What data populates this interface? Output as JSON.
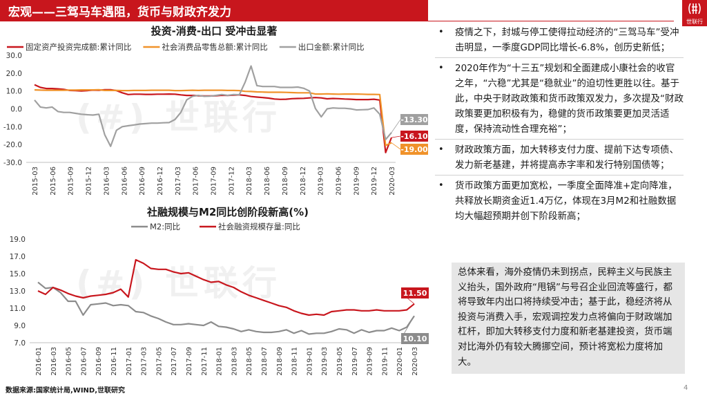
{
  "header": {
    "title": "宏观——三驾马车遇阻，货币与财政齐发力",
    "logo_text": "世联行"
  },
  "watermark": {
    "text": "(#) 世联行"
  },
  "bullets": [
    "疫情之下，封城与停工使得拉动经济的“三驾马车”受冲击明显，一季度GDP同比增长-6.8%，创历史新低；",
    "2020年作为“十三五”规划和全面建成小康社会的收官之年，“六稳”尤其是“稳就业”的迫切性更胜以往。基于此，中央于财政政策和货币政策双发力，多次提及“财政政策要更加积极有为，稳健的货币政策要更加灵活适度，保持流动性合理充裕”；",
    "财政政策方面，加大转移支付力度、提前下达专项债、发力新老基建，并将提高赤字率和发行特别国债等；",
    "货币政策方面更加宽松，一季度全面降准+定向降准，共释放长期资金近1.4万亿，体现在3月M2和社融数据均大幅超预期并创下阶段新高；"
  ],
  "summary": "总体来看，海外疫情仍未到拐点，民粹主义与民族主义抬头，国外政府“甩锅”与号召企业回流等盛行，都将导致年内出口将持续受冲击；基于此，稳经济将从投资与消费入手，宏观调控发力点将偏向于财政端加杠杆，即加大转移支付力度和新老基建投资，货币端对比海外仍有较大腾挪空间，预计将宽松力度将加大。",
  "footer": {
    "source": "数据来源:国家统计局,WIND,世联研究",
    "page": "4"
  },
  "chart_data": [
    {
      "type": "line",
      "title": "投资-消费-出口 受冲击显著",
      "ylim": [
        -30,
        30
      ],
      "yticks": [
        "30.0",
        "20.0",
        "10.0",
        "0.0",
        "-10.0",
        "-20.0",
        "-30.0"
      ],
      "x_tick_labels": [
        "2015-03",
        "2015-06",
        "2015-09",
        "2015-12",
        "2016-03",
        "2016-06",
        "2016-09",
        "2016-12",
        "2017-03",
        "2017-06",
        "2017-09",
        "2017-12",
        "2018-03",
        "2018-06",
        "2018-09",
        "2018-12",
        "2019-03",
        "2019-06",
        "2019-09",
        "2019-12",
        "2020-03"
      ],
      "series": [
        {
          "name": "固定资产投资完成额:累计同比",
          "color": "#c8161d",
          "end_label": "-16.10",
          "values": [
            13.5,
            12,
            11.4,
            11.4,
            11.2,
            10.9,
            10.3,
            10.2,
            10,
            10.2,
            10.5,
            10.4,
            10.7,
            10.7,
            10.2,
            9,
            8,
            8.2,
            8.2,
            8.1,
            8.1,
            8.2,
            8.2,
            8.3,
            8.2,
            7.8,
            7.5,
            7.5,
            7.3,
            7.2,
            7.2,
            7.3,
            7.6,
            7.5,
            7.7,
            7.8,
            7.5,
            6.9,
            6.6,
            6.3,
            6.0,
            5.5,
            5.3,
            5.4,
            5.7,
            5.8,
            5.9,
            6.1,
            6.3,
            6.1,
            5.6,
            5.8,
            5.7,
            5.5,
            5.4,
            5.2,
            5.2,
            5.2,
            5.4,
            4.9,
            -24.5,
            -16.1
          ]
        },
        {
          "name": "社会消费品零售总额:累计同比",
          "color": "#f0922a",
          "end_label": "-19.00",
          "values": [
            10.6,
            10.5,
            10.4,
            10.4,
            10.4,
            10.4,
            10.5,
            10.5,
            10.6,
            10.6,
            10.6,
            10.7,
            10.3,
            10.3,
            10.3,
            10.2,
            10.2,
            10.3,
            10.3,
            10.3,
            10.4,
            10.4,
            10.4,
            10.4,
            10.2,
            10.2,
            10.3,
            10.4,
            10.3,
            10.4,
            10.4,
            10.4,
            10.4,
            10.3,
            10.3,
            10.2,
            9.8,
            9.7,
            9.5,
            9.4,
            9.3,
            9.3,
            9.3,
            9.2,
            9.1,
            9.0,
            9.0,
            9.0,
            8.3,
            8.3,
            8.4,
            8.3,
            8.2,
            8.3,
            8.3,
            8.3,
            8.2,
            8.1,
            8.1,
            8.0,
            -20.5,
            -19.0
          ]
        },
        {
          "name": "出口金额:累计同比",
          "color": "#a0a0a0",
          "end_label": "-13.30",
          "values": [
            4.9,
            1,
            0.5,
            1,
            -1.5,
            -2,
            -2,
            -2.5,
            -3,
            -3.3,
            -3.5,
            -3,
            -14.5,
            -21,
            -12,
            -10,
            -9.5,
            -9,
            -8.5,
            -8.3,
            -8,
            -8,
            -7.8,
            -7.7,
            -6,
            -2,
            5,
            7,
            7.5,
            7,
            7.1,
            7.5,
            8,
            7.5,
            8,
            7.9,
            15,
            24,
            13,
            12.5,
            12.5,
            12.5,
            12,
            12,
            12,
            12.2,
            11.5,
            10,
            0.2,
            -4.5,
            0,
            0.5,
            0.3,
            0.3,
            0,
            -0.6,
            -0.5,
            -0.4,
            0.5,
            -3,
            -17.2,
            -13.3
          ]
        }
      ]
    },
    {
      "type": "line",
      "title": "社融规模与M2同比创阶段新高(%)",
      "ylim": [
        7,
        19
      ],
      "yticks": [
        "19.0",
        "17.0",
        "15.0",
        "13.0",
        "11.0",
        "9.0",
        "7.0"
      ],
      "x_tick_labels": [
        "2016-01",
        "2016-03",
        "2016-05",
        "2016-07",
        "2016-09",
        "2016-11",
        "2017-01",
        "2017-03",
        "2017-05",
        "2017-07",
        "2017-09",
        "2017-11",
        "2018-01",
        "2018-03",
        "2018-05",
        "2018-07",
        "2018-09",
        "2018-11",
        "2019-01",
        "2019-03",
        "2019-05",
        "2019-07",
        "2019-09",
        "2019-11",
        "2020-01",
        "2020-03"
      ],
      "series": [
        {
          "name": "M2:同比",
          "color": "#8c8c8c",
          "end_label": "10.10",
          "values": [
            14,
            13.3,
            13.4,
            12.8,
            11.8,
            11.8,
            10.2,
            11.4,
            11.5,
            11.6,
            11.3,
            11.4,
            11.3,
            10.6,
            10.5,
            10.1,
            9.8,
            9.4,
            9.1,
            9.1,
            9.2,
            9.1,
            9,
            9.4,
            8.9,
            8.8,
            8.6,
            8.3,
            8.5,
            8.3,
            8.2,
            8.2,
            8.3,
            8.5,
            8.1,
            8.4,
            8.0,
            8.1,
            8.1,
            8.3,
            8.6,
            8.5,
            8.1,
            8.5,
            8.2,
            8.4,
            8.4,
            8.7,
            8.4,
            8.8,
            10.1
          ]
        },
        {
          "name": "社会融资规模存量:同比",
          "color": "#c8161d",
          "end_label": "11.50",
          "values": [
            13.0,
            12.6,
            13.4,
            13.1,
            12.7,
            12.4,
            12.2,
            12.4,
            12.5,
            12.6,
            12.8,
            13.2,
            12.3,
            16.6,
            16.2,
            15.6,
            15.5,
            15.5,
            15.2,
            15.0,
            15.1,
            14.7,
            14.3,
            14.0,
            14.1,
            13.7,
            13.4,
            12.9,
            12.5,
            12.2,
            11.9,
            11.6,
            11.3,
            11.1,
            10.7,
            10.4,
            10.2,
            10.3,
            10.2,
            10.6,
            10.7,
            10.8,
            10.8,
            10.7,
            10.7,
            10.8,
            10.7,
            10.7,
            10.7,
            10.8,
            11.5
          ]
        }
      ]
    }
  ]
}
